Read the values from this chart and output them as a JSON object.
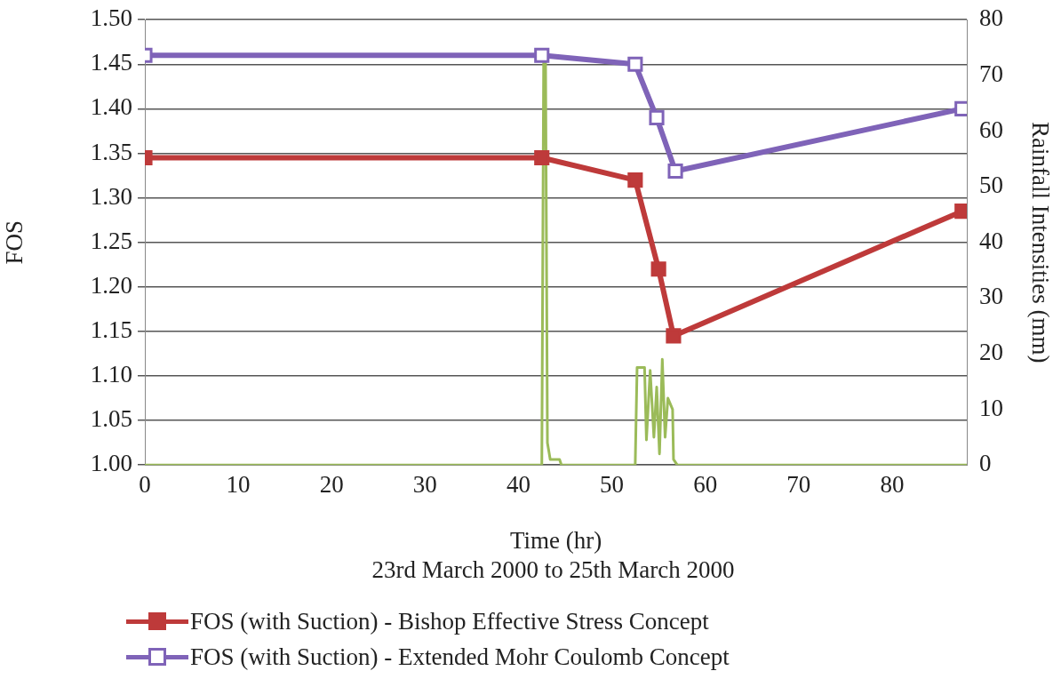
{
  "chart_data": {
    "type": "line",
    "xlabel": "Time (hr)",
    "ylabel": "FOS",
    "y2label": "Rainfall Intensities (mm)",
    "annotations": [
      "23rd March 2000 to 25th March 2000"
    ],
    "xlim": [
      0,
      88
    ],
    "xticks": [
      0,
      10,
      20,
      30,
      40,
      50,
      60,
      70,
      80
    ],
    "ylim": [
      1.0,
      1.5
    ],
    "yticks": [
      {
        "value": 1,
        "label": "1.00"
      },
      1.05,
      {
        "value": 1.1,
        "label": "1.10"
      },
      1.15,
      {
        "value": 1.2,
        "label": "1.20"
      },
      1.25,
      {
        "value": 1.3,
        "label": "1.30"
      },
      1.35,
      {
        "value": 1.4,
        "label": "1.40"
      },
      1.45,
      {
        "value": 1.5,
        "label": "1.50"
      }
    ],
    "y2lim": [
      0,
      80
    ],
    "y2ticks": [
      0,
      10,
      20,
      30,
      40,
      50,
      60,
      70,
      80
    ],
    "grid": "y",
    "legend": "bottom",
    "marker": "square",
    "series": [
      {
        "name": "FOS (with Suction) - Bishop Effective Stress Concept",
        "color": "#be3a3a",
        "x": [
          0,
          42.5,
          52.5,
          55,
          56.6,
          87.5
        ],
        "values": [
          1.345,
          1.345,
          1.32,
          1.22,
          1.145,
          1.285
        ]
      },
      {
        "name": "FOS (with Suction) - Extended Mohr Coulomb Concept",
        "color": "#7f63b8",
        "x": [
          0,
          42.5,
          52.5,
          54.8,
          56.8,
          87.5
        ],
        "values": [
          1.46,
          1.46,
          1.45,
          1.39,
          1.33,
          1.4
        ]
      },
      {
        "color": "#9bbb59",
        "axis": "y2",
        "marker": "none",
        "x": [
          0,
          42.5,
          42.7,
          42.9,
          43.1,
          43.4,
          44.4,
          44.6,
          52.5,
          52.7,
          53.5,
          53.7,
          54.1,
          54.5,
          54.8,
          55.1,
          55.4,
          55.7,
          56.0,
          56.5,
          56.6,
          57.0,
          88
        ],
        "values": [
          0,
          0,
          73,
          73,
          4,
          1,
          1,
          0,
          0,
          17.5,
          17.5,
          4.5,
          17,
          5,
          14,
          2,
          19,
          5,
          12,
          10,
          1,
          0,
          0
        ]
      }
    ]
  }
}
